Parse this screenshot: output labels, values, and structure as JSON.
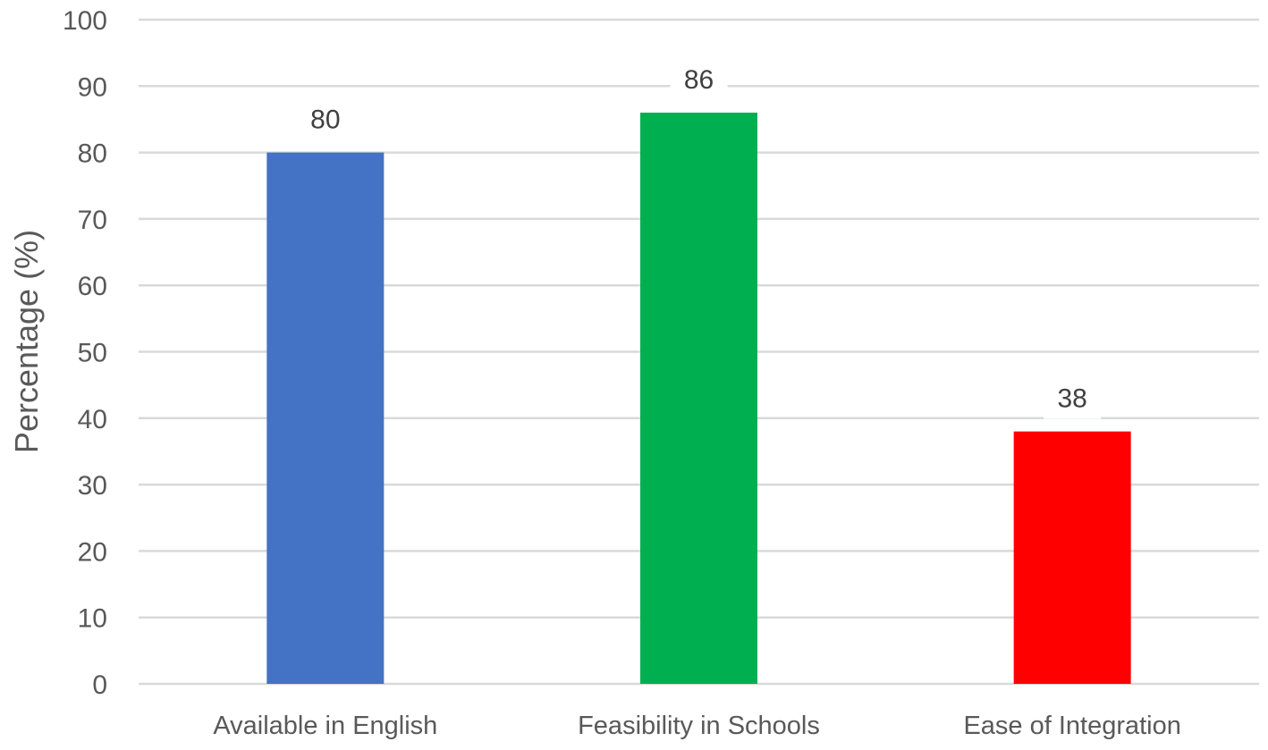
{
  "chart_data": {
    "type": "bar",
    "title": "",
    "xlabel": "",
    "ylabel": "Percentage (%)",
    "ylim": [
      0,
      100
    ],
    "yticks": [
      0,
      10,
      20,
      30,
      40,
      50,
      60,
      70,
      80,
      90,
      100
    ],
    "grid": true,
    "legend": null,
    "categories": [
      "Available in English",
      "Feasibility in Schools",
      "Ease of Integration"
    ],
    "values": [
      80,
      86,
      38
    ],
    "colors": [
      "#4472c4",
      "#00b050",
      "#ff0000"
    ],
    "data_labels": [
      "80",
      "86",
      "38"
    ]
  }
}
